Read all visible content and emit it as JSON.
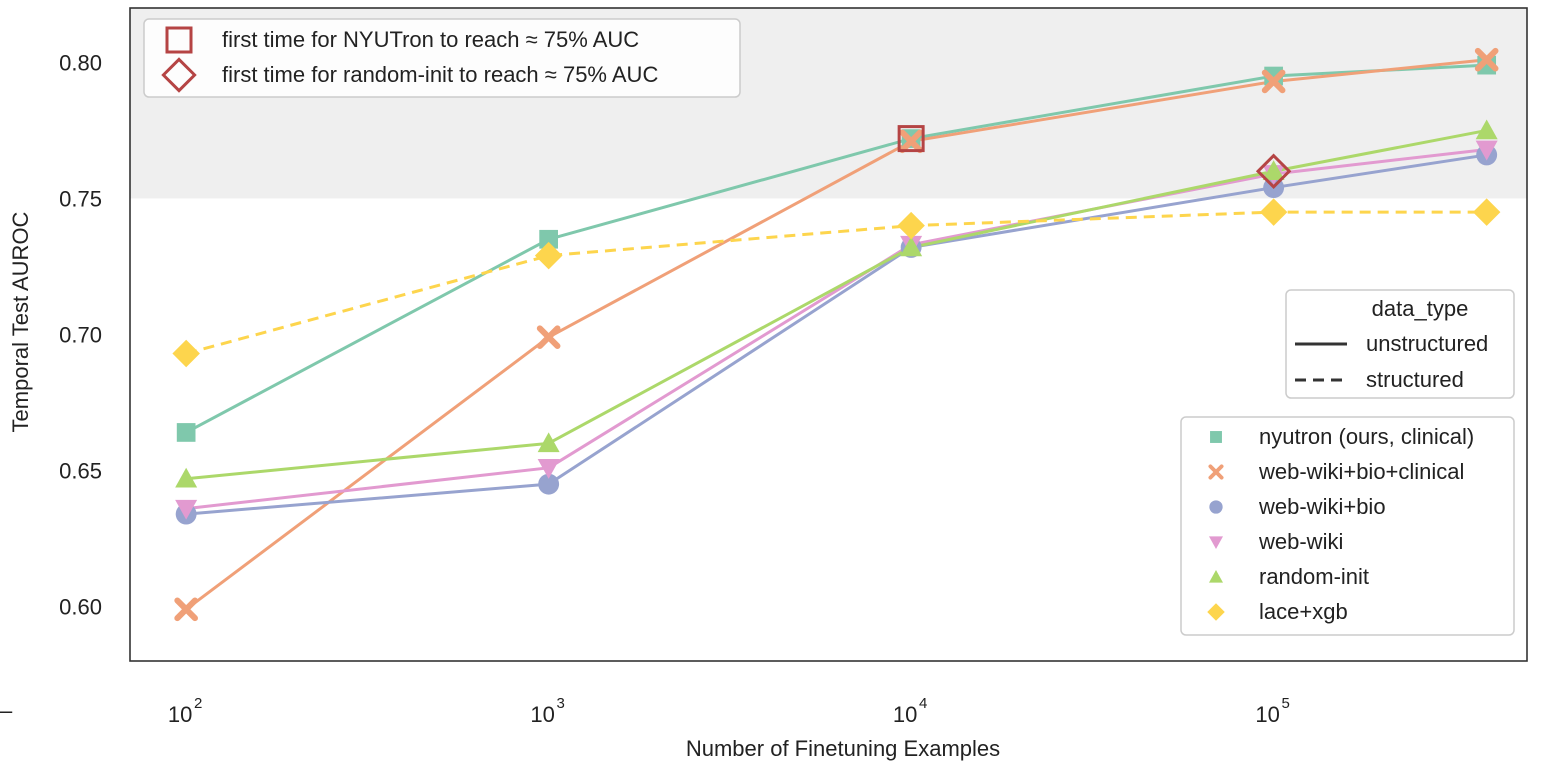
{
  "chart_data": {
    "type": "line",
    "xlabel": "Number of Finetuning Examples",
    "ylabel": "Temporal Test AUROC",
    "xscale": "log",
    "xlim": [
      70,
      500000
    ],
    "ylim": [
      0.58,
      0.82
    ],
    "x_ticks": [
      {
        "value": 100,
        "base": "10",
        "exp": "2"
      },
      {
        "value": 1000,
        "base": "10",
        "exp": "3"
      },
      {
        "value": 10000,
        "base": "10",
        "exp": "4"
      },
      {
        "value": 100000,
        "base": "10",
        "exp": "5"
      }
    ],
    "y_ticks": [
      {
        "value": 0.6,
        "label": "0.60"
      },
      {
        "value": 0.65,
        "label": "0.65"
      },
      {
        "value": 0.7,
        "label": "0.70"
      },
      {
        "value": 0.75,
        "label": "0.75"
      },
      {
        "value": 0.8,
        "label": "0.80"
      }
    ],
    "shaded_region": {
      "y_from": 0.75,
      "y_to": 0.82,
      "color": "#efefef"
    },
    "x": [
      100,
      1000,
      10000,
      100000,
      387000
    ],
    "series": [
      {
        "name": "nyutron (ours, clinical)",
        "data_type": "unstructured",
        "color": "#7fc8ac",
        "marker": "square",
        "values": [
          0.664,
          0.735,
          0.772,
          0.795,
          0.799
        ]
      },
      {
        "name": "web-wiki+bio+clinical",
        "data_type": "unstructured",
        "color": "#f0a078",
        "marker": "x",
        "values": [
          0.599,
          0.699,
          0.771,
          0.793,
          0.801
        ]
      },
      {
        "name": "web-wiki+bio",
        "data_type": "unstructured",
        "color": "#97a3cf",
        "marker": "circle",
        "values": [
          0.634,
          0.645,
          0.732,
          0.754,
          0.766
        ]
      },
      {
        "name": "web-wiki",
        "data_type": "unstructured",
        "color": "#e29ad0",
        "marker": "triangle-down",
        "values": [
          0.636,
          0.651,
          0.733,
          0.759,
          0.768
        ]
      },
      {
        "name": "random-init",
        "data_type": "unstructured",
        "color": "#acd86a",
        "marker": "triangle-up",
        "values": [
          0.647,
          0.66,
          0.732,
          0.76,
          0.775
        ]
      },
      {
        "name": "lace+xgb",
        "data_type": "structured",
        "color": "#fdd54d",
        "marker": "diamond",
        "values": [
          0.693,
          0.729,
          0.74,
          0.745,
          0.745
        ]
      }
    ],
    "highlights": [
      {
        "marker": "hollow-square",
        "x": 10000,
        "y": 0.772,
        "color": "#b54444",
        "label": "first time for NYUTron to reach ≈ 75% AUC"
      },
      {
        "marker": "hollow-diamond",
        "x": 100000,
        "y": 0.76,
        "color": "#b54444",
        "label": "first time for random-init to reach ≈ 75% AUC"
      }
    ],
    "style_legend": {
      "title": "data_type",
      "entries": [
        {
          "label": "unstructured",
          "dash": "solid"
        },
        {
          "label": "structured",
          "dash": "dashed"
        }
      ]
    },
    "legend_placement": {
      "highlights": "top-left",
      "style": "right",
      "series": "bottom-right"
    },
    "grid": false
  },
  "stray_mark": "–"
}
